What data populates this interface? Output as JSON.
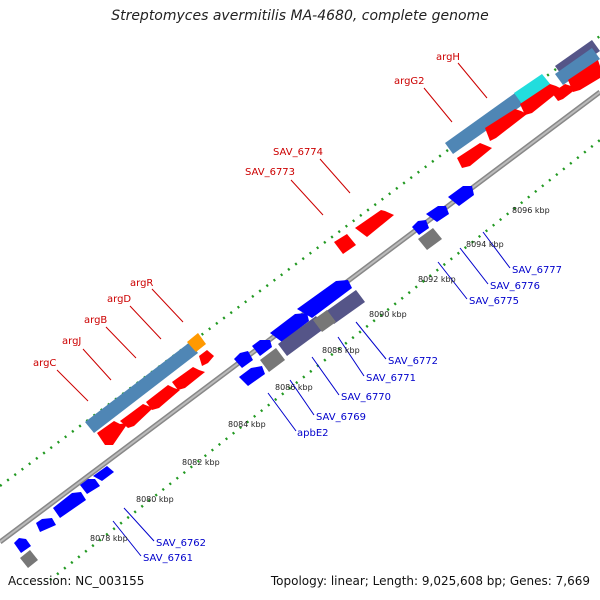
{
  "title": "Streptomyces avermitilis MA-4680, complete genome",
  "footer": {
    "accession": "Accession: NC_003155",
    "stats": "Topology: linear; Length: 9,025,608 bp; Genes: 7,669"
  },
  "colors": {
    "forward_label": "#cc0000",
    "reverse_label": "#0000cc",
    "forward_gene": "#ff0000",
    "reverse_gene": "#0000ff",
    "operon_block": "#4f86b5",
    "hypothetical": "#555588",
    "other": "#777777",
    "highlight_orange": "#ff9900",
    "highlight_cyan": "#22dddd",
    "backbone": "#999999",
    "dots": "#229922"
  },
  "ticks": [
    "8078 kbp",
    "8080 kbp",
    "8082 kbp",
    "8084 kbp",
    "8086 kbp",
    "8088 kbp",
    "8090 kbp",
    "8092 kbp",
    "8094 kbp",
    "8096 kbp"
  ],
  "forward_labels": [
    "argC",
    "argJ",
    "argB",
    "argD",
    "argR",
    "SAV_6773",
    "SAV_6774",
    "argG2",
    "argH"
  ],
  "reverse_labels": [
    "SAV_6761",
    "SAV_6762",
    "apbE2",
    "SAV_6769",
    "SAV_6770",
    "SAV_6771",
    "SAV_6772",
    "SAV_6775",
    "SAV_6776",
    "SAV_6777"
  ]
}
